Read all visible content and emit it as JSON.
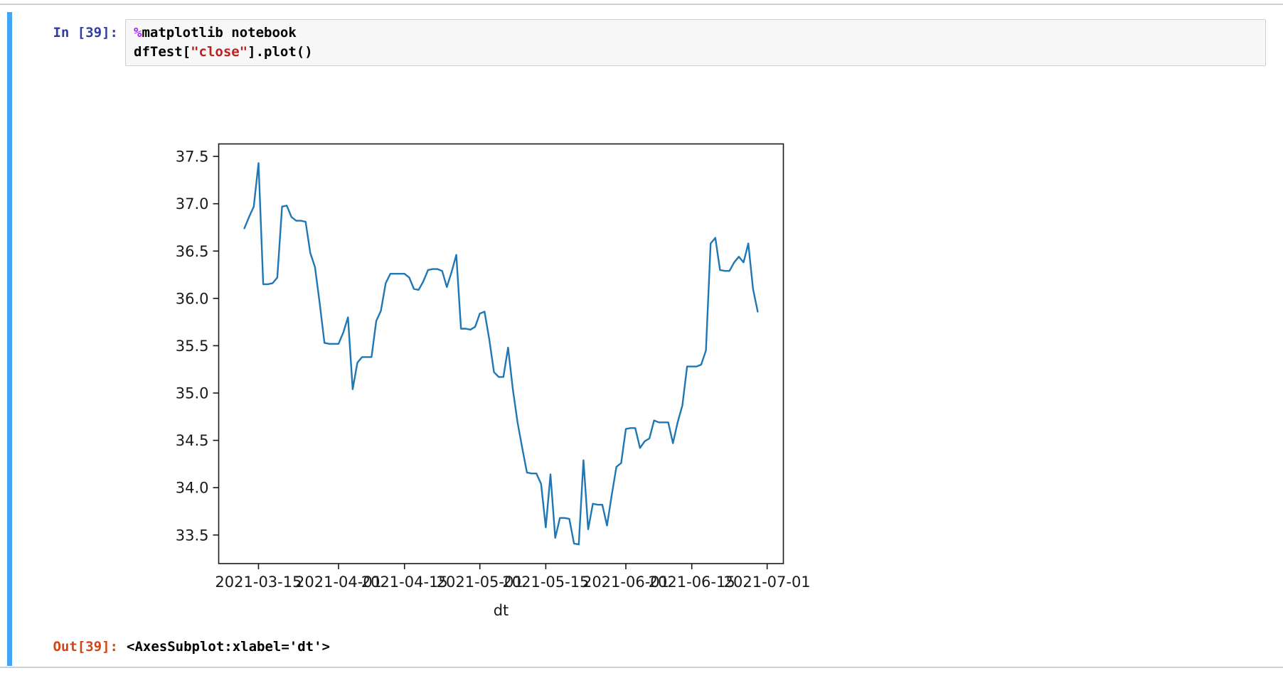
{
  "cell": {
    "input_prompt": "In [39]:",
    "output_prompt": "Out[39]:",
    "code_lines": [
      [
        {
          "text": "%",
          "type": "magic"
        },
        {
          "text": "matplotlib notebook",
          "type": "plain"
        }
      ],
      [
        {
          "text": "dfTest[",
          "type": "plain"
        },
        {
          "text": "\"close\"",
          "type": "string"
        },
        {
          "text": "].plot()",
          "type": "plain"
        }
      ]
    ],
    "output_text": "<AxesSubplot:xlabel='dt'>"
  },
  "colors": {
    "input_prompt": "#303F9F",
    "output_prompt": "#D84315",
    "magic_token": "#AA22FF",
    "string_token": "#BA2121",
    "selected_cell_bar": "#42A5F5",
    "cell_border": "#cfcfcf",
    "code_background": "#f7f7f7",
    "line_color": "#1f77b4",
    "axis_color": "#1a1a1a"
  },
  "chart_data": {
    "type": "line",
    "title": "",
    "xlabel": "dt",
    "ylabel": "",
    "grid": false,
    "legend": null,
    "y_ticks": [
      33.5,
      34.0,
      34.5,
      35.0,
      35.5,
      36.0,
      36.5,
      37.0,
      37.5
    ],
    "ylim": [
      33.198,
      37.632
    ],
    "xlim_days": [
      -5.45,
      114.45
    ],
    "x_ticks": [
      {
        "label": "2021-03-15",
        "day": 3
      },
      {
        "label": "2021-04-01",
        "day": 20
      },
      {
        "label": "2021-04-15",
        "day": 34
      },
      {
        "label": "2021-05-01",
        "day": 50
      },
      {
        "label": "2021-05-15",
        "day": 64
      },
      {
        "label": "2021-06-01",
        "day": 81
      },
      {
        "label": "2021-06-15",
        "day": 95
      },
      {
        "label": "2021-07-01",
        "day": 111
      }
    ],
    "series": [
      {
        "name": "close",
        "color": "#1f77b4",
        "start_date": "2021-03-12",
        "frequency": "daily",
        "values": [
          36.74,
          36.86,
          36.97,
          37.43,
          36.15,
          36.15,
          36.16,
          36.22,
          36.97,
          36.98,
          36.86,
          36.82,
          36.82,
          36.81,
          36.48,
          36.33,
          35.95,
          35.53,
          35.52,
          35.52,
          35.52,
          35.64,
          35.8,
          35.04,
          35.32,
          35.38,
          35.38,
          35.38,
          35.76,
          35.87,
          36.16,
          36.26,
          36.26,
          36.26,
          36.26,
          36.22,
          36.1,
          36.09,
          36.18,
          36.3,
          36.31,
          36.31,
          36.29,
          36.12,
          36.28,
          36.46,
          35.68,
          35.68,
          35.67,
          35.7,
          35.84,
          35.86,
          35.57,
          35.22,
          35.17,
          35.17,
          35.48,
          35.04,
          34.69,
          34.42,
          34.16,
          34.15,
          34.15,
          34.04,
          33.58,
          34.14,
          33.47,
          33.68,
          33.68,
          33.67,
          33.41,
          33.4,
          34.29,
          33.56,
          33.83,
          33.82,
          33.82,
          33.6,
          33.92,
          34.22,
          34.26,
          34.62,
          34.63,
          34.63,
          34.42,
          34.49,
          34.52,
          34.71,
          34.69,
          34.69,
          34.69,
          34.47,
          34.69,
          34.87,
          35.28,
          35.28,
          35.28,
          35.3,
          35.45,
          36.58,
          36.64,
          36.3,
          36.29,
          36.29,
          36.38,
          36.44,
          36.38,
          36.58,
          36.1,
          35.86
        ]
      }
    ]
  }
}
